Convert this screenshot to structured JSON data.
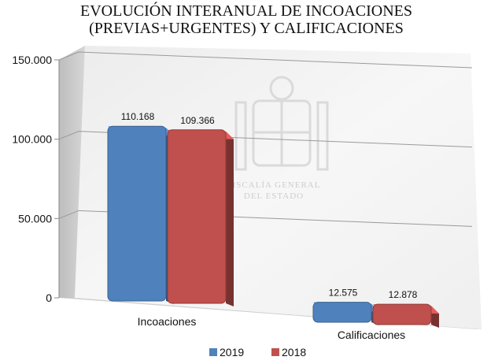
{
  "chart_data": {
    "type": "bar",
    "title_lines": [
      "EVOLUCIÓN INTERANUAL DE INCOACIONES",
      "(PREVIAS+URGENTES) Y CALIFICACIONES"
    ],
    "categories": [
      "Incoaciones",
      "Calificaciones"
    ],
    "series": [
      {
        "name": "2019",
        "values": [
          110168,
          12575
        ],
        "labels": [
          "110.168",
          "12.575"
        ],
        "color": "#4F81BD"
      },
      {
        "name": "2018",
        "values": [
          109366,
          12878
        ],
        "labels": [
          "109.366",
          "12.878"
        ],
        "color": "#C0504D"
      }
    ],
    "y_ticks": [
      {
        "value": 0,
        "label": "0"
      },
      {
        "value": 50000,
        "label": "50.000"
      },
      {
        "value": 100000,
        "label": "100.000"
      },
      {
        "value": 150000,
        "label": "150.000"
      }
    ],
    "ylim": [
      0,
      150000
    ],
    "grid": true,
    "legend_position": "bottom",
    "watermark_lines": [
      "FISCALÍA GENERAL",
      "DEL ESTADO"
    ]
  }
}
